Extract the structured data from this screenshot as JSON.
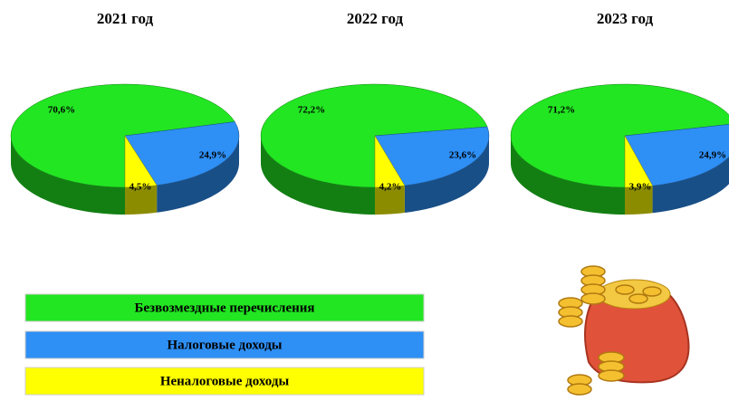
{
  "chart_data": [
    {
      "type": "pie",
      "title": "2021 год",
      "values": [
        70.6,
        24.9,
        4.5
      ],
      "value_labels": [
        "70,6%",
        "24,9%",
        "4,5%"
      ]
    },
    {
      "type": "pie",
      "title": "2022 год",
      "values": [
        72.2,
        23.6,
        4.2
      ],
      "value_labels": [
        "72,2%",
        "23,6%",
        "4,2%"
      ]
    },
    {
      "type": "pie",
      "title": "2023 год",
      "values": [
        71.2,
        24.9,
        3.9
      ],
      "value_labels": [
        "71,2%",
        "24,9%",
        "3,9%"
      ]
    }
  ],
  "legend": {
    "labels": [
      "Безвозмездные перечисления",
      "Налоговые доходы",
      "Неналоговые доходы"
    ],
    "colors": [
      "#22e622",
      "#2e8ff5",
      "#ffff00"
    ]
  }
}
